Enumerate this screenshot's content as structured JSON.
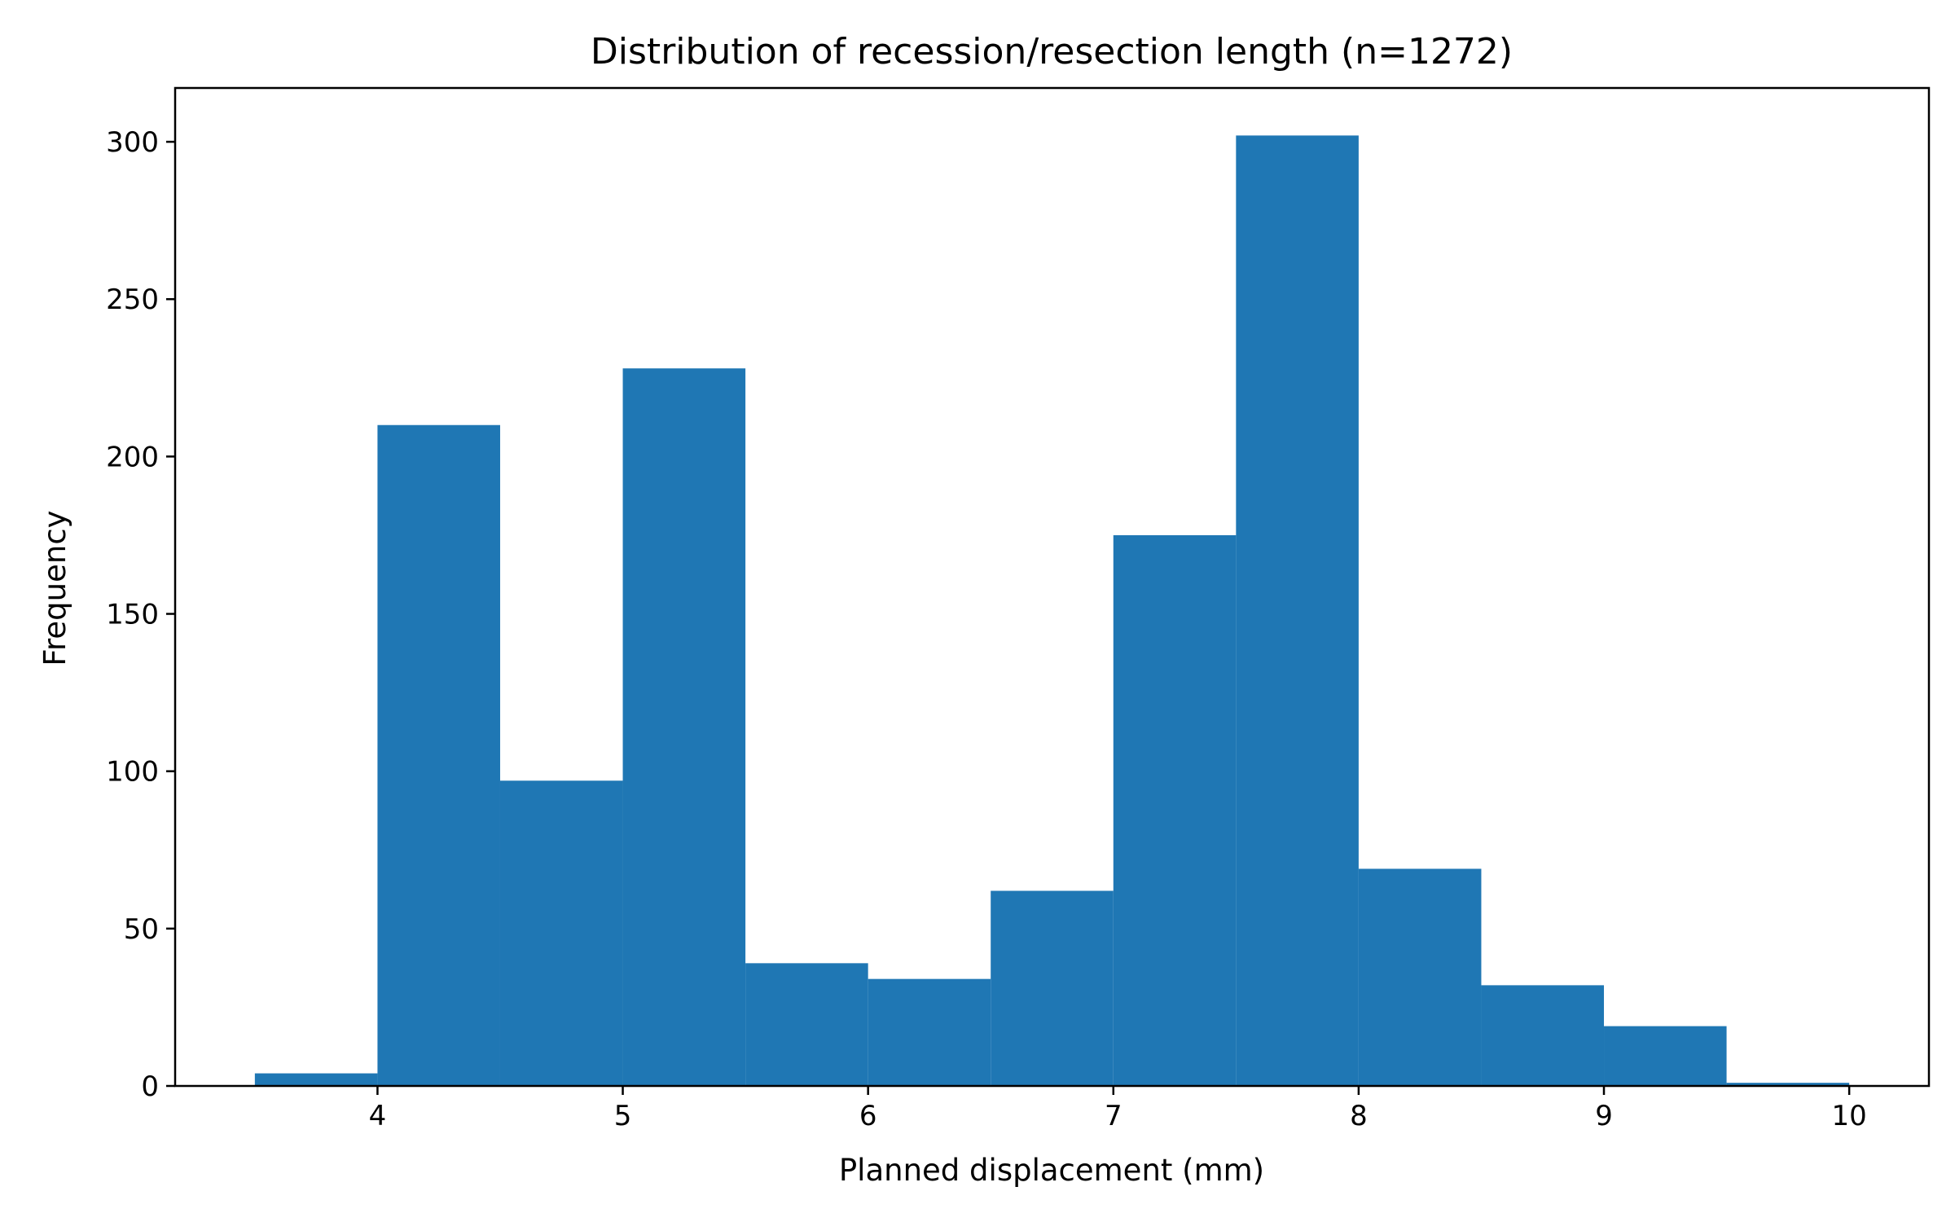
{
  "chart_data": {
    "type": "bar",
    "title": "Distribution of recession/resection length (n=1272)",
    "xlabel": "Planned displacement (mm)",
    "ylabel": "Frequency",
    "bar_color": "#1f77b4",
    "bins": [
      {
        "x0": 3.5,
        "x1": 4.0,
        "value": 4
      },
      {
        "x0": 4.0,
        "x1": 4.5,
        "value": 210
      },
      {
        "x0": 4.5,
        "x1": 5.0,
        "value": 97
      },
      {
        "x0": 5.0,
        "x1": 5.5,
        "value": 228
      },
      {
        "x0": 5.5,
        "x1": 6.0,
        "value": 39
      },
      {
        "x0": 6.0,
        "x1": 6.5,
        "value": 34
      },
      {
        "x0": 6.5,
        "x1": 7.0,
        "value": 62
      },
      {
        "x0": 7.0,
        "x1": 7.5,
        "value": 175
      },
      {
        "x0": 7.5,
        "x1": 8.0,
        "value": 302
      },
      {
        "x0": 8.0,
        "x1": 8.5,
        "value": 69
      },
      {
        "x0": 8.5,
        "x1": 9.0,
        "value": 32
      },
      {
        "x0": 9.0,
        "x1": 9.5,
        "value": 19
      },
      {
        "x0": 9.5,
        "x1": 10.0,
        "value": 1
      }
    ],
    "xlim": [
      3.175,
      10.325
    ],
    "ylim": [
      0,
      317.1
    ],
    "xticks": [
      4,
      5,
      6,
      7,
      8,
      9,
      10
    ],
    "xtick_labels": [
      "4",
      "5",
      "6",
      "7",
      "8",
      "9",
      "10"
    ],
    "yticks": [
      0,
      50,
      100,
      150,
      200,
      250,
      300
    ],
    "ytick_labels": [
      "0",
      "50",
      "100",
      "150",
      "200",
      "250",
      "300"
    ],
    "grid": false,
    "legend": "none"
  }
}
